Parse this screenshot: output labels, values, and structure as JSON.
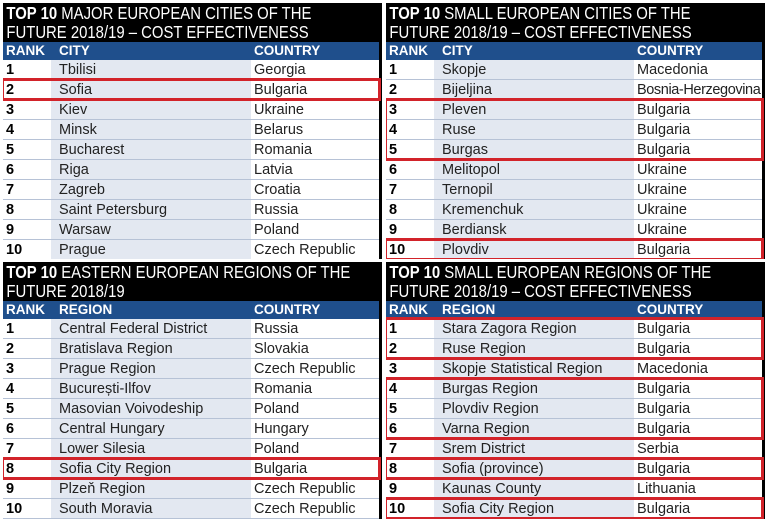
{
  "highlight_color": "#d2232a",
  "header_color": "#1f4f8c",
  "panels": [
    {
      "title_bold": "TOP 10",
      "title_rest": " MAJOR EUROPEAN CITIES OF THE FUTURE 2018/19 – COST EFFECTIVENESS",
      "headers": [
        "RANK",
        "CITY",
        "COUNTRY"
      ],
      "rows": [
        [
          "1",
          "Tbilisi",
          "Georgia"
        ],
        [
          "2",
          "Sofia",
          "Bulgaria"
        ],
        [
          "3",
          "Kiev",
          "Ukraine"
        ],
        [
          "4",
          "Minsk",
          "Belarus"
        ],
        [
          "5",
          "Bucharest",
          "Romania"
        ],
        [
          "6",
          "Riga",
          "Latvia"
        ],
        [
          "7",
          "Zagreb",
          "Croatia"
        ],
        [
          "8",
          "Saint Petersburg",
          "Russia"
        ],
        [
          "9",
          "Warsaw",
          "Poland"
        ],
        [
          "10",
          "Prague",
          "Czech Republic"
        ]
      ],
      "highlighted_ranks": [
        [
          2,
          2
        ]
      ]
    },
    {
      "title_bold": "TOP 10",
      "title_rest": " SMALL EUROPEAN CITIES OF THE FUTURE 2018/19 – COST EFFECTIVENESS",
      "headers": [
        "RANK",
        "CITY",
        "COUNTRY"
      ],
      "rows": [
        [
          "1",
          "Skopje",
          "Macedonia"
        ],
        [
          "2",
          "Bijeljina",
          "Bosnia-Herzegovina"
        ],
        [
          "3",
          "Pleven",
          "Bulgaria"
        ],
        [
          "4",
          "Ruse",
          "Bulgaria"
        ],
        [
          "5",
          "Burgas",
          "Bulgaria"
        ],
        [
          "6",
          "Melitopol",
          "Ukraine"
        ],
        [
          "7",
          "Ternopil",
          "Ukraine"
        ],
        [
          "8",
          "Kremenchuk",
          "Ukraine"
        ],
        [
          "9",
          "Berdiansk",
          "Ukraine"
        ],
        [
          "10",
          "Plovdiv",
          "Bulgaria"
        ]
      ],
      "highlighted_ranks": [
        [
          3,
          5
        ],
        [
          10,
          10
        ]
      ]
    },
    {
      "title_bold": "TOP 10",
      "title_rest": " EASTERN EUROPEAN REGIONS OF THE FUTURE 2018/19",
      "headers": [
        "RANK",
        "REGION",
        "COUNTRY"
      ],
      "rows": [
        [
          "1",
          "Central Federal District",
          "Russia"
        ],
        [
          "2",
          "Bratislava Region",
          "Slovakia"
        ],
        [
          "3",
          "Prague Region",
          "Czech Republic"
        ],
        [
          "4",
          "București-Ilfov",
          "Romania"
        ],
        [
          "5",
          "Masovian Voivodeship",
          "Poland"
        ],
        [
          "6",
          "Central Hungary",
          "Hungary"
        ],
        [
          "7",
          "Lower Silesia",
          "Poland"
        ],
        [
          "8",
          "Sofia City Region",
          "Bulgaria"
        ],
        [
          "9",
          "Plzeň Region",
          "Czech Republic"
        ],
        [
          "10",
          "South Moravia",
          "Czech Republic"
        ]
      ],
      "highlighted_ranks": [
        [
          8,
          8
        ]
      ]
    },
    {
      "title_bold": "TOP 10",
      "title_rest": " SMALL EUROPEAN REGIONS OF THE FUTURE 2018/19 – COST EFFECTIVENESS",
      "headers": [
        "RANK",
        "REGION",
        "COUNTRY"
      ],
      "rows": [
        [
          "1",
          "Stara Zagora Region",
          "Bulgaria"
        ],
        [
          "2",
          "Ruse Region",
          "Bulgaria"
        ],
        [
          "3",
          "Skopje Statistical Region",
          "Macedonia"
        ],
        [
          "4",
          "Burgas Region",
          "Bulgaria"
        ],
        [
          "5",
          "Plovdiv Region",
          "Bulgaria"
        ],
        [
          "6",
          "Varna Region",
          "Bulgaria"
        ],
        [
          "7",
          "Srem District",
          "Serbia"
        ],
        [
          "8",
          "Sofia (province)",
          "Bulgaria"
        ],
        [
          "9",
          "Kaunas County",
          "Lithuania"
        ],
        [
          "10",
          "Sofia City Region",
          "Bulgaria"
        ]
      ],
      "highlighted_ranks": [
        [
          1,
          2
        ],
        [
          4,
          6
        ],
        [
          8,
          8
        ],
        [
          10,
          10
        ]
      ]
    }
  ]
}
